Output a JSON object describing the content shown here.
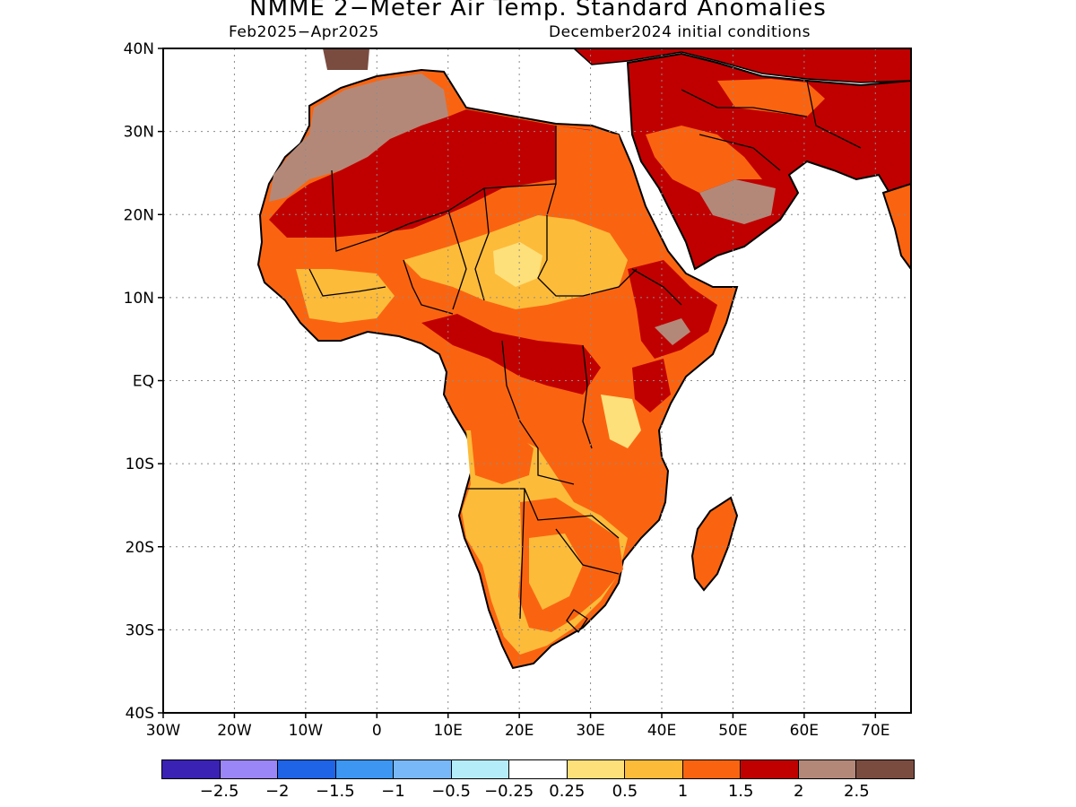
{
  "title": "NMME 2−Meter Air Temp. Standard Anomalies",
  "period": "Feb2025−Apr2025",
  "initial_conditions": "December2024 initial conditions",
  "map": {
    "lon_range": [
      -30,
      75
    ],
    "lat_range": [
      -40,
      40
    ],
    "lon_tick_labels": [
      "30W",
      "20W",
      "10W",
      "0",
      "10E",
      "20E",
      "30E",
      "40E",
      "50E",
      "60E",
      "70E"
    ],
    "lat_tick_labels": [
      "40N",
      "30N",
      "20N",
      "10N",
      "EQ",
      "10S",
      "20S",
      "30S",
      "40S"
    ],
    "gridlines": "dotted"
  },
  "colorbar": {
    "colors": [
      "#3a22b4",
      "#9a86f6",
      "#1f63e6",
      "#3c96f2",
      "#78b8f8",
      "#b4ecfa",
      "#ffffff",
      "#fee07a",
      "#fdbb3a",
      "#fa6410",
      "#c00000",
      "#b48878",
      "#7a4c40"
    ],
    "labels": [
      "−2.5",
      "−2",
      "−1.5",
      "−1",
      "−0.5",
      "−0.25",
      "0.25",
      "0.5",
      "1",
      "1.5",
      "2",
      "2.5"
    ]
  }
}
